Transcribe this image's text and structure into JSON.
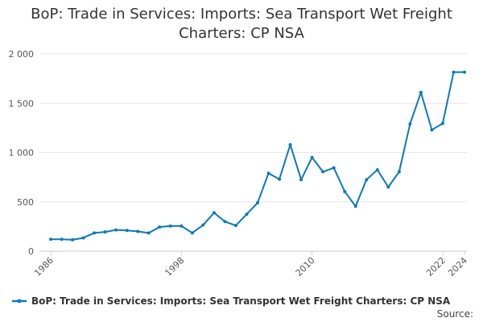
{
  "chart_data": {
    "type": "line",
    "title": "BoP: Trade in Services: Imports: Sea Transport Wet Freight Charters: CP NSA",
    "xlabel": "",
    "ylabel": "",
    "x": [
      1986,
      1987,
      1988,
      1989,
      1990,
      1991,
      1992,
      1993,
      1994,
      1995,
      1996,
      1997,
      1998,
      1999,
      2000,
      2001,
      2002,
      2003,
      2004,
      2005,
      2006,
      2007,
      2008,
      2009,
      2010,
      2011,
      2012,
      2013,
      2014,
      2015,
      2016,
      2017,
      2018,
      2019,
      2020,
      2021,
      2022,
      2023,
      2024
    ],
    "x_tick_labels": [
      "1986",
      "1998",
      "2010",
      "2022",
      "2024"
    ],
    "x_ticks": [
      1986,
      1998,
      2010,
      2022,
      2024
    ],
    "y_tick_labels": [
      "0",
      "500",
      "1 000",
      "1 500",
      "2 000"
    ],
    "y_ticks": [
      0,
      500,
      1000,
      1500,
      2000
    ],
    "ylim": [
      0,
      2000
    ],
    "xlim": [
      1986,
      2024
    ],
    "grid": true,
    "legend_position": "bottom",
    "series": [
      {
        "name": "BoP: Trade in Services: Imports: Sea Transport Wet Freight Charters: CP NSA",
        "color": "#0b7ab8",
        "values": [
          120,
          120,
          115,
          135,
          185,
          195,
          215,
          210,
          200,
          185,
          245,
          255,
          255,
          185,
          265,
          390,
          300,
          260,
          375,
          490,
          790,
          730,
          1080,
          725,
          950,
          805,
          845,
          605,
          455,
          725,
          825,
          650,
          805,
          1290,
          1610,
          1230,
          1295,
          1815,
          1815
        ]
      }
    ]
  },
  "source_label": "Source:"
}
